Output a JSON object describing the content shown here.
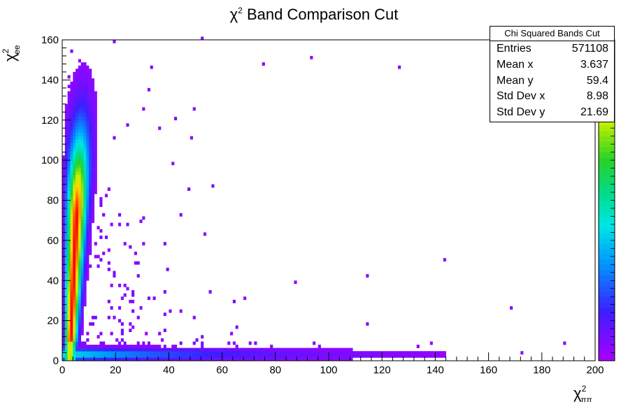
{
  "chart_data": {
    "type": "heatmap",
    "title": {
      "main": "χ",
      "sup": "2",
      "rest": " Band Comparison Cut"
    },
    "xlabel": {
      "main": "χ",
      "sup": "2",
      "sub": "ππ"
    },
    "ylabel": {
      "main": "χ",
      "sup": "2",
      "sub": "ee"
    },
    "xlim": [
      0,
      200
    ],
    "ylim": [
      0,
      160
    ],
    "x_ticks": [
      "0",
      "20",
      "40",
      "60",
      "80",
      "100",
      "120",
      "140",
      "160",
      "180",
      "200"
    ],
    "y_ticks": [
      "0",
      "20",
      "40",
      "60",
      "80",
      "100",
      "120",
      "140",
      "160"
    ],
    "grid": false,
    "colorscale": "rainbow (purple low → red high)",
    "stats": {
      "title": "Chi Squared Bands Cut",
      "rows": [
        {
          "label": "Entries",
          "value": "571108"
        },
        {
          "label": "Mean x",
          "value": "3.637"
        },
        {
          "label": "Mean y",
          "value": "59.4"
        },
        {
          "label": "Std Dev x",
          "value": "8.98"
        },
        {
          "label": "Std Dev y",
          "value": "21.69"
        }
      ]
    }
  }
}
